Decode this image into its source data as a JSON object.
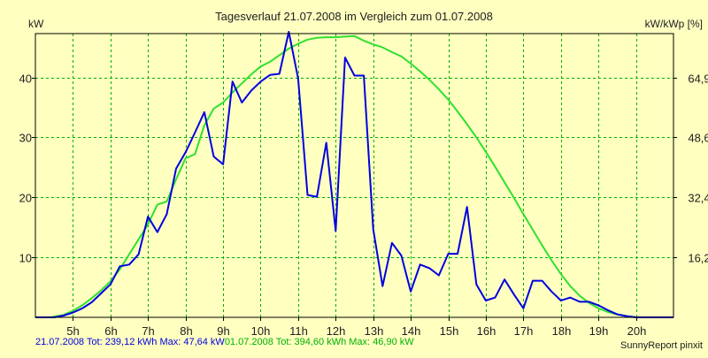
{
  "colors": {
    "background": "#ffffc0",
    "grid": "#00b000",
    "series_blue": "#0000e0",
    "series_green": "#30e030"
  },
  "footer": {
    "blue_text": "21.07.2008 Tot: 239,12 kWh Max: 47,64 kW",
    "green_text": "01.07.2008 Tot: 394,60 kWh Max: 46,90 kW",
    "credit": "SunnyReport pinxit"
  },
  "chart_data": {
    "type": "line",
    "title": "Tagesverlauf 21.07.2008 im Vergleich zum 01.07.2008",
    "ylabel": "kW",
    "ylabel_right": "kW/kWp [%]",
    "xlabel": "",
    "xlim": [
      4.0,
      21.0
    ],
    "ylim": [
      0,
      47.3
    ],
    "x_ticks": [
      5,
      6,
      7,
      8,
      9,
      10,
      11,
      12,
      13,
      14,
      15,
      16,
      17,
      18,
      19,
      20
    ],
    "x_tick_labels": [
      "5h",
      "6h",
      "7h",
      "8h",
      "9h",
      "10h",
      "11h",
      "12h",
      "13h",
      "14h",
      "15h",
      "16h",
      "17h",
      "18h",
      "19h",
      "20h"
    ],
    "y_ticks": [
      10,
      20,
      30,
      40
    ],
    "y_tick_labels": [
      "10",
      "20",
      "30",
      "40"
    ],
    "y2_ticks": [
      10,
      20,
      30,
      40
    ],
    "y2_tick_labels": [
      "16,2",
      "32,4",
      "48,6",
      "64,9"
    ],
    "grid": true,
    "legend": "bottom",
    "series": [
      {
        "name": "21.07.2008",
        "color": "#0000e0",
        "points": [
          [
            4.0,
            0
          ],
          [
            4.5,
            0
          ],
          [
            4.75,
            0.3
          ],
          [
            5.0,
            0.8
          ],
          [
            5.25,
            1.5
          ],
          [
            5.5,
            2.5
          ],
          [
            5.75,
            4.0
          ],
          [
            6.0,
            5.5
          ],
          [
            6.25,
            8.5
          ],
          [
            6.5,
            8.8
          ],
          [
            6.75,
            10.5
          ],
          [
            7.0,
            16.8
          ],
          [
            7.25,
            14.2
          ],
          [
            7.5,
            17.2
          ],
          [
            7.75,
            24.8
          ],
          [
            8.0,
            27.5
          ],
          [
            8.25,
            30.8
          ],
          [
            8.5,
            34.2
          ],
          [
            8.75,
            26.8
          ],
          [
            9.0,
            25.5
          ],
          [
            9.25,
            39.3
          ],
          [
            9.5,
            35.8
          ],
          [
            9.75,
            37.8
          ],
          [
            10.0,
            39.3
          ],
          [
            10.25,
            40.4
          ],
          [
            10.5,
            40.6
          ],
          [
            10.75,
            47.6
          ],
          [
            11.0,
            39.8
          ],
          [
            11.25,
            20.4
          ],
          [
            11.5,
            20.1
          ],
          [
            11.75,
            29.1
          ],
          [
            12.0,
            14.4
          ],
          [
            12.25,
            43.3
          ],
          [
            12.5,
            40.3
          ],
          [
            12.75,
            40.3
          ],
          [
            13.0,
            14.7
          ],
          [
            13.25,
            5.2
          ],
          [
            13.5,
            12.4
          ],
          [
            13.75,
            10.3
          ],
          [
            14.0,
            4.3
          ],
          [
            14.25,
            8.8
          ],
          [
            14.5,
            8.2
          ],
          [
            14.75,
            7.0
          ],
          [
            15.0,
            10.6
          ],
          [
            15.25,
            10.6
          ],
          [
            15.5,
            18.4
          ],
          [
            15.75,
            5.5
          ],
          [
            16.0,
            2.8
          ],
          [
            16.25,
            3.3
          ],
          [
            16.5,
            6.3
          ],
          [
            16.75,
            3.8
          ],
          [
            17.0,
            1.5
          ],
          [
            17.25,
            6.1
          ],
          [
            17.5,
            6.1
          ],
          [
            17.75,
            4.3
          ],
          [
            18.0,
            2.8
          ],
          [
            18.25,
            3.3
          ],
          [
            18.5,
            2.6
          ],
          [
            18.75,
            2.6
          ],
          [
            19.0,
            2.0
          ],
          [
            19.25,
            1.2
          ],
          [
            19.5,
            0.5
          ],
          [
            19.75,
            0.2
          ],
          [
            20.0,
            0
          ],
          [
            21.0,
            0
          ]
        ]
      },
      {
        "name": "01.07.2008",
        "color": "#30e030",
        "points": [
          [
            4.0,
            0
          ],
          [
            4.4,
            0
          ],
          [
            4.75,
            0.4
          ],
          [
            5.0,
            1.1
          ],
          [
            5.25,
            2.0
          ],
          [
            5.5,
            3.2
          ],
          [
            5.75,
            4.5
          ],
          [
            6.0,
            6.0
          ],
          [
            6.25,
            8.0
          ],
          [
            6.5,
            10.5
          ],
          [
            6.75,
            13.0
          ],
          [
            7.0,
            15.5
          ],
          [
            7.25,
            18.8
          ],
          [
            7.5,
            19.3
          ],
          [
            7.75,
            23.0
          ],
          [
            8.0,
            26.5
          ],
          [
            8.25,
            27.2
          ],
          [
            8.5,
            32.0
          ],
          [
            8.75,
            34.8
          ],
          [
            9.0,
            35.8
          ],
          [
            9.25,
            37.5
          ],
          [
            9.5,
            39.0
          ],
          [
            9.75,
            40.5
          ],
          [
            10.0,
            41.8
          ],
          [
            10.25,
            42.6
          ],
          [
            10.5,
            43.7
          ],
          [
            10.75,
            44.8
          ],
          [
            11.0,
            45.6
          ],
          [
            11.25,
            46.3
          ],
          [
            11.5,
            46.6
          ],
          [
            11.75,
            46.7
          ],
          [
            12.0,
            46.7
          ],
          [
            12.25,
            46.8
          ],
          [
            12.5,
            46.9
          ],
          [
            12.75,
            46.1
          ],
          [
            13.0,
            45.5
          ],
          [
            13.25,
            45.0
          ],
          [
            13.5,
            44.2
          ],
          [
            13.75,
            43.5
          ],
          [
            14.0,
            42.3
          ],
          [
            14.25,
            41.0
          ],
          [
            14.5,
            39.6
          ],
          [
            14.75,
            38.0
          ],
          [
            15.0,
            36.3
          ],
          [
            15.25,
            34.3
          ],
          [
            15.5,
            32.2
          ],
          [
            15.75,
            30.0
          ],
          [
            16.0,
            27.6
          ],
          [
            16.25,
            25.1
          ],
          [
            16.5,
            22.5
          ],
          [
            16.75,
            19.9
          ],
          [
            17.0,
            17.2
          ],
          [
            17.25,
            14.6
          ],
          [
            17.5,
            12.0
          ],
          [
            17.75,
            9.5
          ],
          [
            18.0,
            7.2
          ],
          [
            18.25,
            5.2
          ],
          [
            18.5,
            3.6
          ],
          [
            18.75,
            2.4
          ],
          [
            19.0,
            1.5
          ],
          [
            19.25,
            0.9
          ],
          [
            19.5,
            0.5
          ],
          [
            19.75,
            0.2
          ],
          [
            20.0,
            0
          ],
          [
            21.0,
            0
          ]
        ]
      }
    ]
  }
}
